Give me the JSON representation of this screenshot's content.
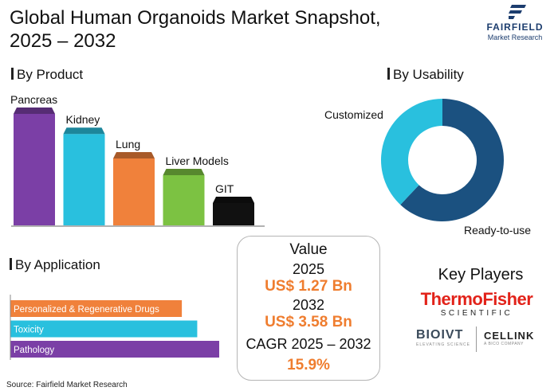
{
  "title_line1": "Global Human Organoids Market Snapshot,",
  "title_line2": "2025 – 2032",
  "logo": {
    "name": "FAIRFIELD",
    "sub": "Market Research"
  },
  "sections": {
    "product": "By Product",
    "usability": "By Usability",
    "application": "By Application"
  },
  "value_box": {
    "heading": "Value",
    "year_start": "2025",
    "value_start": "US$ 1.27 Bn",
    "year_end": "2032",
    "value_end": "US$ 3.58 Bn",
    "cagr_label": "CAGR 2025 – 2032",
    "cagr_value": "15.9%"
  },
  "key_players": {
    "title": "Key Players",
    "thermo_name": "ThermoFisher",
    "thermo_sub": "SCIENTIFIC",
    "bioivt_name": "BIOIVT",
    "bioivt_sub": "ELEVATING SCIENCE",
    "cellink_name": "CELLINK",
    "cellink_sub": "A BICO COMPANY"
  },
  "source": "Source: Fairfield Market Research",
  "chart_data": [
    {
      "type": "bar",
      "title": "By Product",
      "categories": [
        "Pancreas",
        "Kidney",
        "Lung",
        "Liver Models",
        "GIT"
      ],
      "values": [
        100,
        82,
        60,
        45,
        20
      ],
      "colors": [
        "#7b3fa6",
        "#29c0de",
        "#f0813b",
        "#7cc242",
        "#111111"
      ]
    },
    {
      "type": "pie",
      "title": "By Usability",
      "labels": [
        "Ready-to-use",
        "Customized"
      ],
      "values": [
        62,
        38
      ],
      "colors": [
        "#1b5180",
        "#29c0de"
      ]
    },
    {
      "type": "bar",
      "orientation": "horizontal",
      "title": "By Application",
      "categories": [
        "Personalized & Regenerative Drugs",
        "Toxicity",
        "Pathology"
      ],
      "values": [
        78,
        85,
        95
      ],
      "colors": [
        "#f0813b",
        "#29c0de",
        "#7b3fa6"
      ]
    }
  ]
}
